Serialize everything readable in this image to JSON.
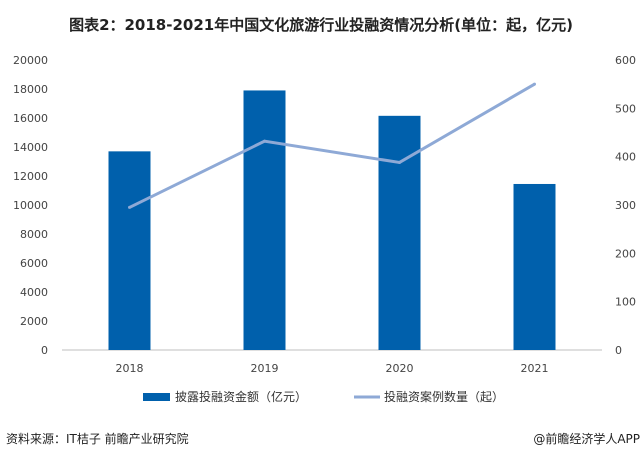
{
  "chart_data": {
    "type": "bar+line",
    "title": "图表2：2018-2021年中国文化旅游行业投融资情况分析(单位：起，亿元)",
    "categories": [
      "2018",
      "2019",
      "2020",
      "2021"
    ],
    "series": [
      {
        "name": "披露投融资金额（亿元）",
        "type": "bar",
        "axis": "left",
        "color": "#0060ac",
        "values": [
          13700,
          17900,
          16150,
          11450
        ]
      },
      {
        "name": "投融资案例数量（起）",
        "type": "line",
        "axis": "right",
        "color": "#8ea9d6",
        "values": [
          295,
          432,
          388,
          550
        ]
      }
    ],
    "y_left": {
      "range": [
        0,
        20000
      ],
      "ticks": [
        "0",
        "2000",
        "4000",
        "6000",
        "8000",
        "10000",
        "12000",
        "14000",
        "16000",
        "18000",
        "20000"
      ]
    },
    "y_right": {
      "range": [
        0,
        600
      ],
      "ticks": [
        "0",
        "100",
        "200",
        "300",
        "400",
        "500",
        "600"
      ]
    },
    "grid": false,
    "legend": "bottom"
  },
  "footer": {
    "source": "资料来源：IT桔子 前瞻产业研究院",
    "brand": "@前瞻经济学人APP"
  }
}
